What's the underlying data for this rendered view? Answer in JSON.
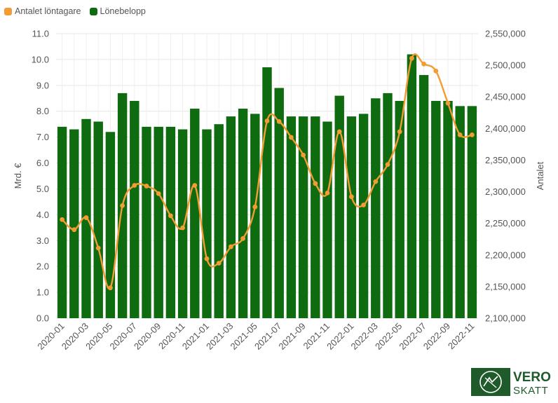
{
  "chart_data": {
    "type": "bar+line",
    "legend": [
      {
        "name": "Antalet löntagare",
        "color": "#f39c33"
      },
      {
        "name": "Lönebelopp",
        "color": "#0f6b0f"
      }
    ],
    "categories": [
      "2020-01",
      "2020-02",
      "2020-03",
      "2020-04",
      "2020-05",
      "2020-06",
      "2020-07",
      "2020-08",
      "2020-09",
      "2020-10",
      "2020-11",
      "2020-12",
      "2021-01",
      "2021-02",
      "2021-03",
      "2021-04",
      "2021-05",
      "2021-06",
      "2021-07",
      "2021-08",
      "2021-09",
      "2021-10",
      "2021-11",
      "2021-12",
      "2022-01",
      "2022-02",
      "2022-03",
      "2022-04",
      "2022-05",
      "2022-06",
      "2022-07",
      "2022-08",
      "2022-09",
      "2022-10",
      "2022-11"
    ],
    "x_tick_labels": [
      "2020-01",
      "2020-03",
      "2020-05",
      "2020-07",
      "2020-09",
      "2020-11",
      "2021-01",
      "2021-03",
      "2021-05",
      "2021-07",
      "2021-09",
      "2021-11",
      "2022-01",
      "2022-03",
      "2022-05",
      "2022-07",
      "2022-09",
      "2022-11"
    ],
    "series": [
      {
        "name": "Lönebelopp",
        "type": "bar",
        "axis": "left",
        "values": [
          7.4,
          7.3,
          7.7,
          7.6,
          7.2,
          8.7,
          8.4,
          7.4,
          7.4,
          7.4,
          7.3,
          8.1,
          7.3,
          7.5,
          7.8,
          8.1,
          7.9,
          9.7,
          8.9,
          7.8,
          7.8,
          7.8,
          7.6,
          8.6,
          7.8,
          7.9,
          8.5,
          8.7,
          8.4,
          10.2,
          9.4,
          8.4,
          8.4,
          8.2,
          8.2
        ]
      },
      {
        "name": "Antalet löntagare",
        "type": "line",
        "axis": "right",
        "values": [
          2256000,
          2240000,
          2259000,
          2211000,
          2148000,
          2278000,
          2310000,
          2309000,
          2297000,
          2262000,
          2243000,
          2310000,
          2194000,
          2187000,
          2213000,
          2226000,
          2276000,
          2412000,
          2411000,
          2386000,
          2358000,
          2313000,
          2298000,
          2395000,
          2292000,
          2279000,
          2316000,
          2343000,
          2395000,
          2511000,
          2502000,
          2491000,
          2440000,
          2390000,
          2390000
        ]
      }
    ],
    "y_left": {
      "label": "Mrd. €",
      "range": [
        0,
        11
      ],
      "ticks": [
        "0.0",
        "1.0",
        "2.0",
        "3.0",
        "4.0",
        "5.0",
        "6.0",
        "7.0",
        "8.0",
        "9.0",
        "10.0",
        "11.0"
      ]
    },
    "y_right": {
      "label": "Antalet",
      "range": [
        2100000,
        2550000
      ],
      "ticks": [
        "2,100,000",
        "2,150,000",
        "2,200,000",
        "2,250,000",
        "2,300,000",
        "2,350,000",
        "2,400,000",
        "2,450,000",
        "2,500,000",
        "2,550,000"
      ]
    },
    "grid": true,
    "legend_position": "top-left"
  },
  "logo": {
    "line1": "VERO",
    "line2": "SKATT"
  }
}
